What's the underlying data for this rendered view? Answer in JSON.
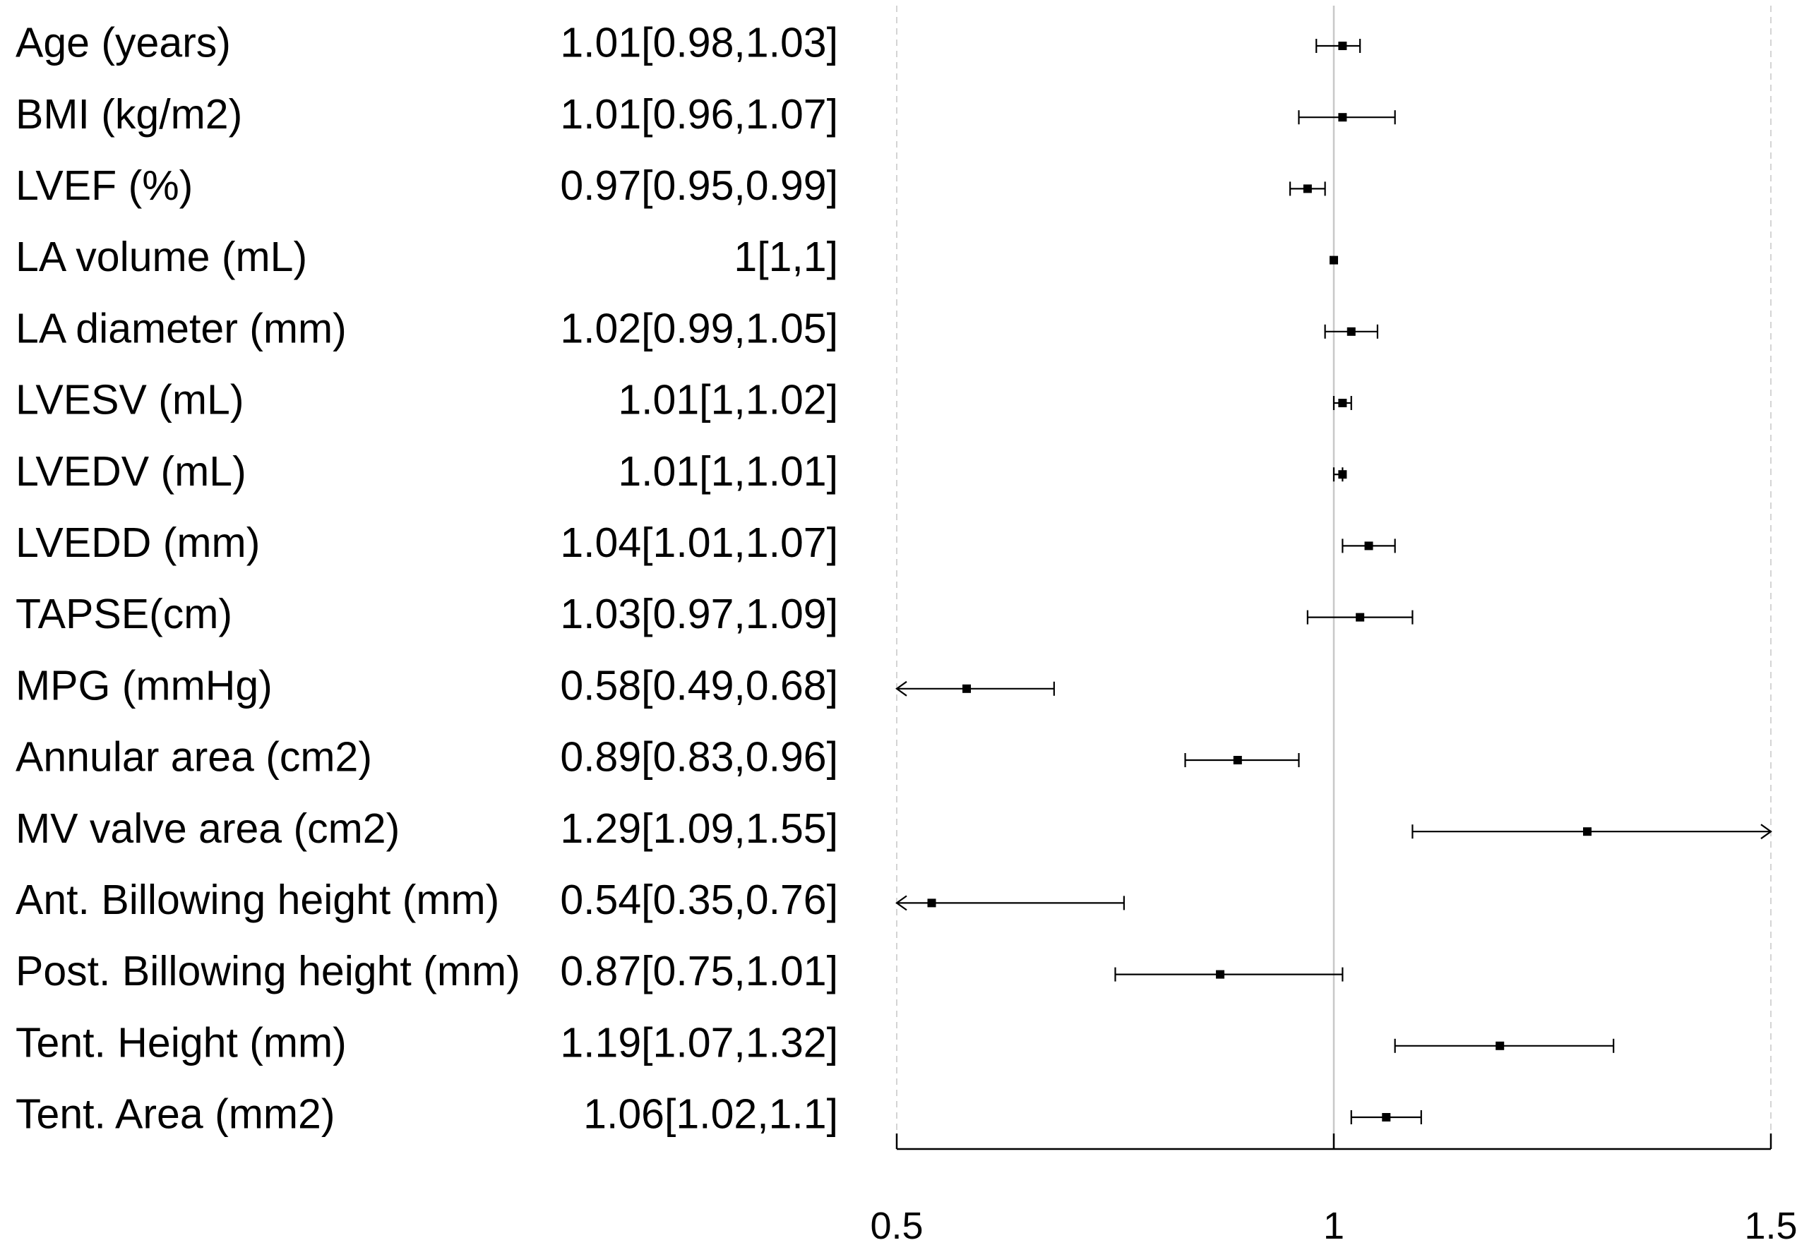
{
  "chart_data": {
    "type": "forest",
    "title": "",
    "xlabel": "",
    "ylabel": "",
    "xlim": [
      0.5,
      1.5
    ],
    "x_ticks": [
      0.5,
      1,
      1.5
    ],
    "x_tick_labels": [
      "0.5",
      "1",
      "1.5"
    ],
    "reference_line": 1,
    "grid_lines": [
      0.5,
      1.5
    ],
    "rows": [
      {
        "label": "Age (years)",
        "estimate_text": "1.01[0.98,1.03]",
        "or": 1.01,
        "lower": 0.98,
        "upper": 1.03
      },
      {
        "label": "BMI (kg/m2)",
        "estimate_text": "1.01[0.96,1.07]",
        "or": 1.01,
        "lower": 0.96,
        "upper": 1.07
      },
      {
        "label": "LVEF (%)",
        "estimate_text": "0.97[0.95,0.99]",
        "or": 0.97,
        "lower": 0.95,
        "upper": 0.99
      },
      {
        "label": "LA volume (mL)",
        "estimate_text": "1[1,1]",
        "or": 1.0,
        "lower": 1.0,
        "upper": 1.0
      },
      {
        "label": "LA diameter (mm)",
        "estimate_text": "1.02[0.99,1.05]",
        "or": 1.02,
        "lower": 0.99,
        "upper": 1.05
      },
      {
        "label": "LVESV (mL)",
        "estimate_text": "1.01[1,1.02]",
        "or": 1.01,
        "lower": 1.0,
        "upper": 1.02
      },
      {
        "label": "LVEDV (mL)",
        "estimate_text": "1.01[1,1.01]",
        "or": 1.01,
        "lower": 1.0,
        "upper": 1.01
      },
      {
        "label": "LVEDD (mm)",
        "estimate_text": "1.04[1.01,1.07]",
        "or": 1.04,
        "lower": 1.01,
        "upper": 1.07
      },
      {
        "label": "TAPSE(cm)",
        "estimate_text": "1.03[0.97,1.09]",
        "or": 1.03,
        "lower": 0.97,
        "upper": 1.09
      },
      {
        "label": "MPG (mmHg)",
        "estimate_text": "0.58[0.49,0.68]",
        "or": 0.58,
        "lower": 0.49,
        "upper": 0.68
      },
      {
        "label": "Annular area (cm2)",
        "estimate_text": "0.89[0.83,0.96]",
        "or": 0.89,
        "lower": 0.83,
        "upper": 0.96
      },
      {
        "label": "MV valve area (cm2)",
        "estimate_text": "1.29[1.09,1.55]",
        "or": 1.29,
        "lower": 1.09,
        "upper": 1.55
      },
      {
        "label": "Ant. Billowing height (mm)",
        "estimate_text": "0.54[0.35,0.76]",
        "or": 0.54,
        "lower": 0.35,
        "upper": 0.76
      },
      {
        "label": "Post. Billowing height (mm)",
        "estimate_text": "0.87[0.75,1.01]",
        "or": 0.87,
        "lower": 0.75,
        "upper": 1.01
      },
      {
        "label": "Tent. Height (mm)",
        "estimate_text": "1.19[1.07,1.32]",
        "or": 1.19,
        "lower": 1.07,
        "upper": 1.32
      },
      {
        "label": "Tent. Area (mm2)",
        "estimate_text": "1.06[1.02,1.1]",
        "or": 1.06,
        "lower": 1.02,
        "upper": 1.1
      }
    ]
  }
}
